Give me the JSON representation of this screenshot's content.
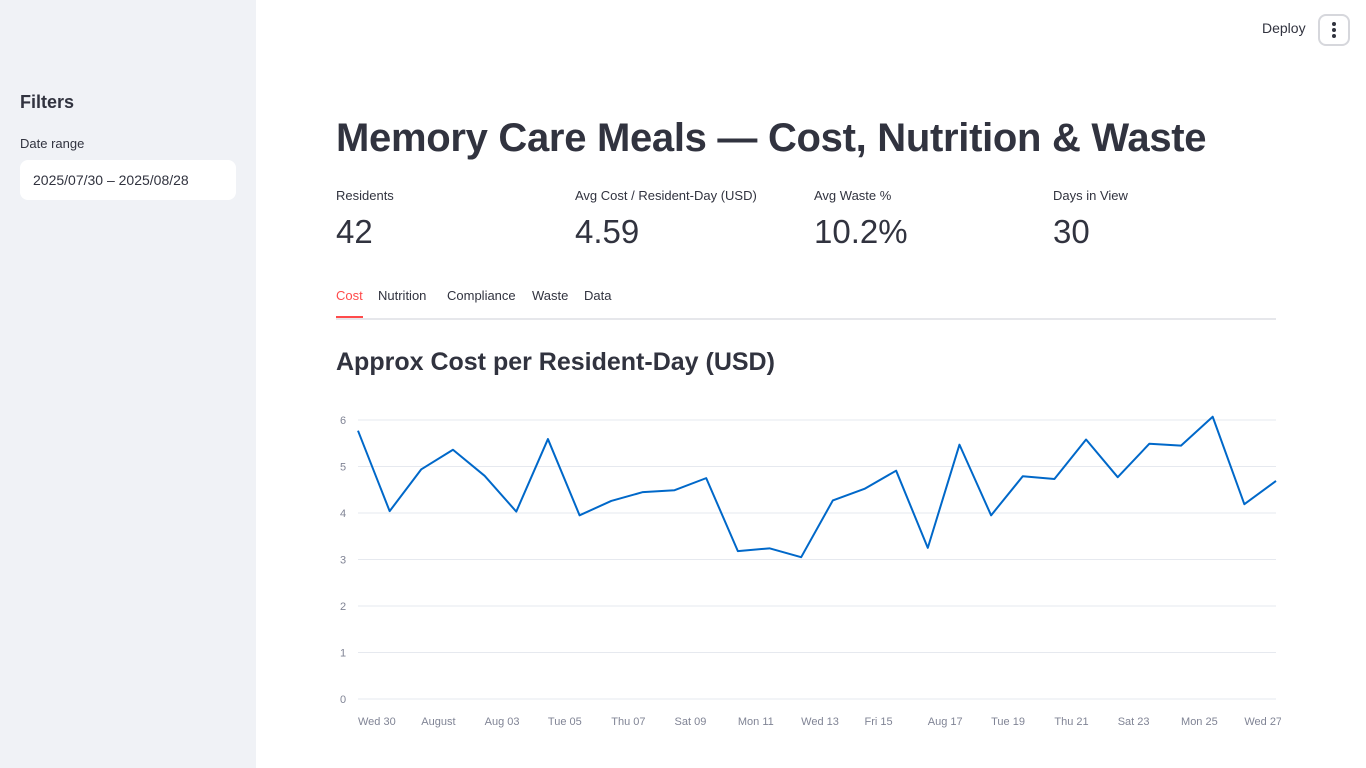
{
  "sidebar": {
    "filters_title": "Filters",
    "date_label": "Date range",
    "date_value": "2025/07/30 – 2025/08/28"
  },
  "topbar": {
    "deploy_label": "Deploy"
  },
  "page_title": "Memory Care Meals — Cost, Nutrition & Waste",
  "metrics": [
    {
      "label": "Residents",
      "value": "42"
    },
    {
      "label": "Avg Cost / Resident-Day (USD)",
      "value": "4.59"
    },
    {
      "label": "Avg Waste %",
      "value": "10.2%"
    },
    {
      "label": "Days in View",
      "value": "30"
    }
  ],
  "tabs": [
    {
      "label": "Cost",
      "active": true
    },
    {
      "label": "Nutrition",
      "active": false
    },
    {
      "label": "Compliance",
      "active": false
    },
    {
      "label": "Waste",
      "active": false
    },
    {
      "label": "Data",
      "active": false
    }
  ],
  "chart_title": "Approx Cost per Resident-Day (USD)",
  "chart_data": {
    "type": "line",
    "x": [
      "2025-07-30",
      "2025-07-31",
      "2025-08-01",
      "2025-08-02",
      "2025-08-03",
      "2025-08-04",
      "2025-08-05",
      "2025-08-06",
      "2025-08-07",
      "2025-08-08",
      "2025-08-09",
      "2025-08-10",
      "2025-08-11",
      "2025-08-12",
      "2025-08-13",
      "2025-08-14",
      "2025-08-15",
      "2025-08-16",
      "2025-08-17",
      "2025-08-18",
      "2025-08-19",
      "2025-08-20",
      "2025-08-21",
      "2025-08-22",
      "2025-08-23",
      "2025-08-24",
      "2025-08-25",
      "2025-08-26",
      "2025-08-27",
      "2025-08-28"
    ],
    "series": [
      {
        "values": [
          5.77,
          4.04,
          4.94,
          5.36,
          4.8,
          4.03,
          5.59,
          3.95,
          4.26,
          4.45,
          4.49,
          4.75,
          3.18,
          3.24,
          3.05,
          4.27,
          4.52,
          4.91,
          3.25,
          5.47,
          3.95,
          4.79,
          4.73,
          5.58,
          4.77,
          5.49,
          5.45,
          6.07,
          4.19,
          4.69
        ]
      }
    ],
    "x_ticks": [
      {
        "x": "2025-07-30",
        "label": "Wed 30"
      },
      {
        "x": "2025-08-01",
        "label": "August"
      },
      {
        "x": "2025-08-03",
        "label": "Aug 03"
      },
      {
        "x": "2025-08-05",
        "label": "Tue 05"
      },
      {
        "x": "2025-08-07",
        "label": "Thu 07"
      },
      {
        "x": "2025-08-09",
        "label": "Sat 09"
      },
      {
        "x": "2025-08-11",
        "label": "Mon 11"
      },
      {
        "x": "2025-08-13",
        "label": "Wed 13"
      },
      {
        "x": "2025-08-15",
        "label": "Fri 15"
      },
      {
        "x": "2025-08-17",
        "label": "Aug 17"
      },
      {
        "x": "2025-08-19",
        "label": "Tue 19"
      },
      {
        "x": "2025-08-21",
        "label": "Thu 21"
      },
      {
        "x": "2025-08-23",
        "label": "Sat 23"
      },
      {
        "x": "2025-08-25",
        "label": "Mon 25"
      },
      {
        "x": "2025-08-27",
        "label": "Wed 27"
      }
    ],
    "y_ticks": [
      0,
      1,
      2,
      3,
      4,
      5,
      6
    ],
    "ylim": [
      0,
      6
    ],
    "grid": true,
    "line_color": "#0068c9"
  }
}
